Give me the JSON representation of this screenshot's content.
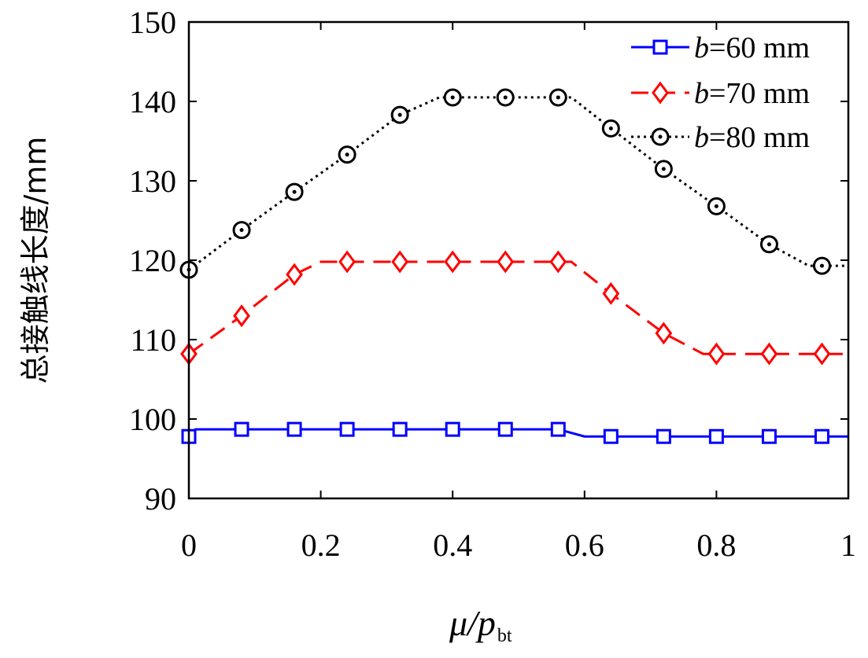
{
  "chart_data": {
    "type": "line",
    "xlabel": "μ/p",
    "xlabel_sub": "bt",
    "ylabel": "总接触线长度/mm",
    "xlim": [
      0,
      1
    ],
    "ylim": [
      90,
      150
    ],
    "xticks": [
      0,
      0.2,
      0.4,
      0.6,
      0.8,
      1
    ],
    "xtick_labels": [
      "0",
      "0.2",
      "0.4",
      "0.6",
      "0.8",
      "1"
    ],
    "yticks": [
      90,
      100,
      110,
      120,
      130,
      140,
      150
    ],
    "ytick_labels": [
      "90",
      "100",
      "110",
      "120",
      "130",
      "140",
      "150"
    ],
    "grid": false,
    "legend_position": "top-right",
    "series": [
      {
        "name": "b=60 mm",
        "legend_var": "b",
        "legend_rest": "=60 mm",
        "color": "#0000ff",
        "marker": "square",
        "line_style": "solid",
        "line": [
          [
            0,
            97.8
          ],
          [
            0.01,
            98.7
          ],
          [
            0.56,
            98.7
          ],
          [
            0.6,
            97.8
          ],
          [
            1,
            97.8
          ]
        ],
        "markers_x": [
          0,
          0.08,
          0.16,
          0.24,
          0.32,
          0.4,
          0.48,
          0.56,
          0.64,
          0.72,
          0.8,
          0.88,
          0.96
        ],
        "markers_y": [
          97.8,
          98.7,
          98.7,
          98.7,
          98.7,
          98.7,
          98.7,
          98.7,
          97.8,
          97.8,
          97.8,
          97.8,
          97.8
        ]
      },
      {
        "name": "b=70 mm",
        "legend_var": "b",
        "legend_rest": "=70 mm",
        "color": "#ff0000",
        "marker": "diamond",
        "line_style": "dashed",
        "line": [
          [
            0,
            108.2
          ],
          [
            0.08,
            113
          ],
          [
            0.16,
            118.2
          ],
          [
            0.2,
            119.8
          ],
          [
            0.58,
            119.8
          ],
          [
            0.64,
            115.8
          ],
          [
            0.72,
            110.8
          ],
          [
            0.78,
            108.2
          ],
          [
            1,
            108.2
          ]
        ],
        "markers_x": [
          0,
          0.08,
          0.16,
          0.24,
          0.32,
          0.4,
          0.48,
          0.56,
          0.64,
          0.72,
          0.8,
          0.88,
          0.96
        ],
        "markers_y": [
          108.2,
          113,
          118.2,
          119.8,
          119.8,
          119.8,
          119.8,
          119.8,
          115.8,
          110.8,
          108.2,
          108.2,
          108.2
        ]
      },
      {
        "name": "b=80 mm",
        "legend_var": "b",
        "legend_rest": "=80 mm",
        "color": "#000000",
        "marker": "circle",
        "line_style": "dotted",
        "line": [
          [
            0,
            118.8
          ],
          [
            0.08,
            123.8
          ],
          [
            0.16,
            128.6
          ],
          [
            0.24,
            133.3
          ],
          [
            0.32,
            138.3
          ],
          [
            0.38,
            140.5
          ],
          [
            0.58,
            140.5
          ],
          [
            0.64,
            136.6
          ],
          [
            0.72,
            131.5
          ],
          [
            0.8,
            126.8
          ],
          [
            0.88,
            122
          ],
          [
            0.94,
            119.3
          ],
          [
            1,
            119.3
          ]
        ],
        "markers_x": [
          0,
          0.08,
          0.16,
          0.24,
          0.32,
          0.4,
          0.48,
          0.56,
          0.64,
          0.72,
          0.8,
          0.88,
          0.96
        ],
        "markers_y": [
          118.8,
          123.8,
          128.6,
          133.3,
          138.3,
          140.5,
          140.5,
          140.5,
          136.6,
          131.5,
          126.8,
          122,
          119.3
        ]
      }
    ]
  }
}
